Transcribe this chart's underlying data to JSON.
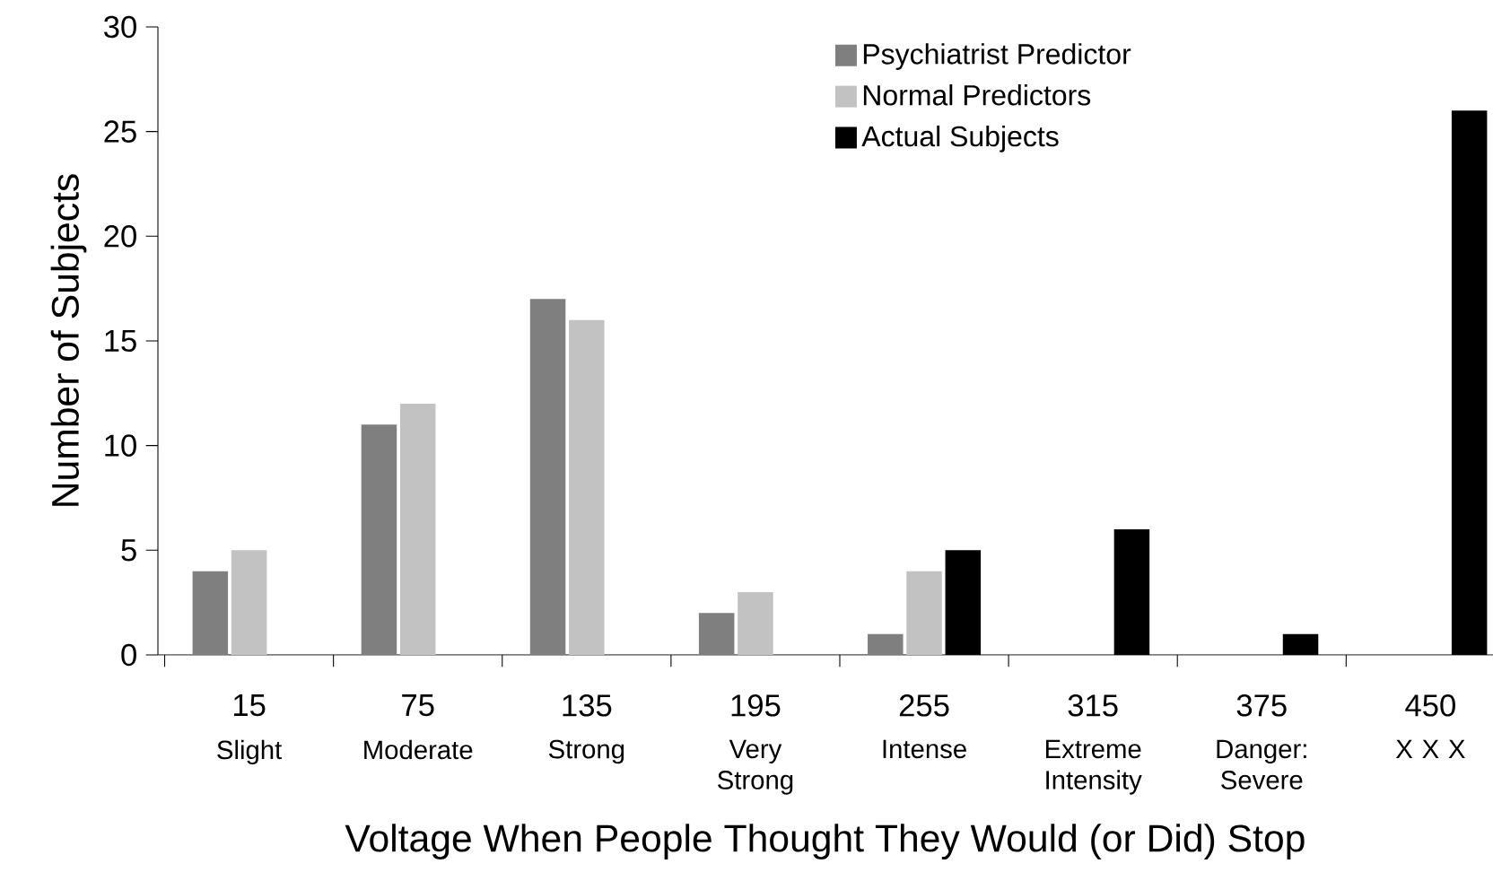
{
  "chart_data": {
    "type": "bar",
    "xlabel": "Voltage When People Thought They Would (or Did) Stop",
    "ylabel": "Number of Subjects",
    "categories": [
      "15",
      "75",
      "135",
      "195",
      "255",
      "315",
      "375",
      "450"
    ],
    "series": [
      {
        "name": "Psychiatrist Predictor",
        "color": "#7f7f7f",
        "values": [
          4,
          11,
          17,
          2,
          1,
          null,
          null,
          null
        ]
      },
      {
        "name": "Normal Predictors",
        "color": "#c2c2c2",
        "values": [
          5,
          12,
          16,
          3,
          4,
          null,
          null,
          null
        ]
      },
      {
        "name": "Actual Subjects",
        "color": "#000000",
        "values": [
          null,
          null,
          null,
          null,
          5,
          6,
          1,
          26
        ]
      }
    ],
    "annotations": [
      "Slight",
      "Moderate",
      "Strong",
      "Very Strong",
      "Intense",
      "Extreme Intensity",
      "Danger: Severe",
      "X X X"
    ],
    "ylim": [
      0,
      30
    ],
    "yticks": [
      0,
      5,
      10,
      15,
      20,
      25,
      30
    ],
    "legend": "top"
  }
}
